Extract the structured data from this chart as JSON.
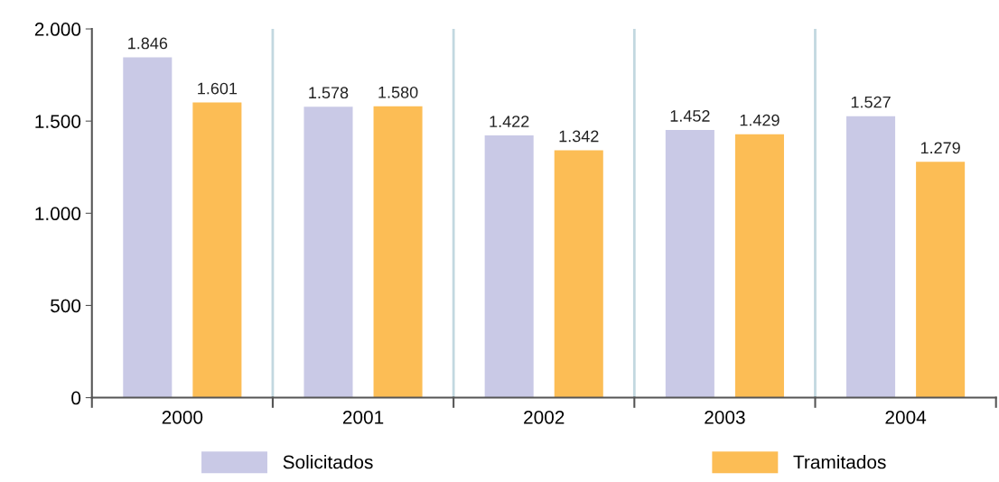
{
  "chart_data": {
    "type": "bar",
    "categories": [
      "2000",
      "2001",
      "2002",
      "2003",
      "2004"
    ],
    "series": [
      {
        "name": "Solicitados",
        "color": "#c9c9e6",
        "values": [
          1846,
          1578,
          1422,
          1452,
          1527
        ],
        "value_labels": [
          "1.846",
          "1.578",
          "1.422",
          "1.452",
          "1.527"
        ]
      },
      {
        "name": "Tramitados",
        "color": "#fcbd55",
        "values": [
          1601,
          1580,
          1342,
          1429,
          1279
        ],
        "value_labels": [
          "1.601",
          "1.580",
          "1.342",
          "1.429",
          "1.279"
        ]
      }
    ],
    "ylim": [
      0,
      2000
    ],
    "yticks": [
      {
        "value": 0,
        "label": "0"
      },
      {
        "value": 500,
        "label": "500"
      },
      {
        "value": 1000,
        "label": "1.000"
      },
      {
        "value": 1500,
        "label": "1.500"
      },
      {
        "value": 2000,
        "label": "2.000"
      }
    ],
    "grid": "x",
    "legend": "bottom"
  }
}
